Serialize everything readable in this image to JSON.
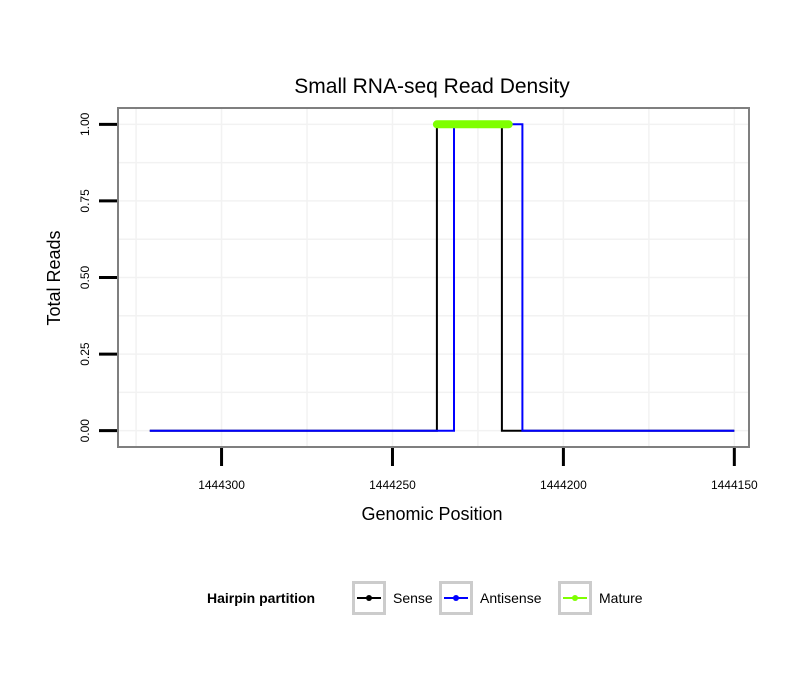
{
  "chart_data": {
    "type": "line",
    "title": "Small RNA-seq Read Density",
    "xlabel": "Genomic Position",
    "ylabel": "Total Reads",
    "xlim": [
      1444330,
      1444146
    ],
    "ylim": [
      -0.05,
      1.05
    ],
    "x_reversed": true,
    "x_ticks": [
      1444300,
      1444250,
      1444200,
      1444150
    ],
    "x_tick_labels": [
      "1444300",
      "1444250",
      "1444200",
      "1444150"
    ],
    "y_ticks": [
      0,
      0.25,
      0.5,
      0.75,
      1
    ],
    "y_tick_labels": [
      "0.00",
      "0.25",
      "0.50",
      "0.75",
      "1.00"
    ],
    "grid": true,
    "legend": {
      "title": "Hairpin partition",
      "placement": "bottom",
      "entries": [
        "Sense",
        "Antisense",
        "Mature"
      ]
    },
    "series": [
      {
        "name": "Sense",
        "color": "#000000",
        "x": [
          1444321,
          1444237,
          1444237,
          1444218,
          1444218,
          1444150
        ],
        "y": [
          0,
          0,
          1,
          1,
          0,
          0
        ]
      },
      {
        "name": "Antisense",
        "color": "#0000ff",
        "x": [
          1444321,
          1444232,
          1444232,
          1444212,
          1444212,
          1444150
        ],
        "y": [
          0,
          0,
          1,
          1,
          0,
          0
        ]
      },
      {
        "name": "Mature",
        "color": "#7fff00",
        "x": [
          1444237,
          1444216
        ],
        "y": [
          1,
          1
        ]
      }
    ]
  }
}
